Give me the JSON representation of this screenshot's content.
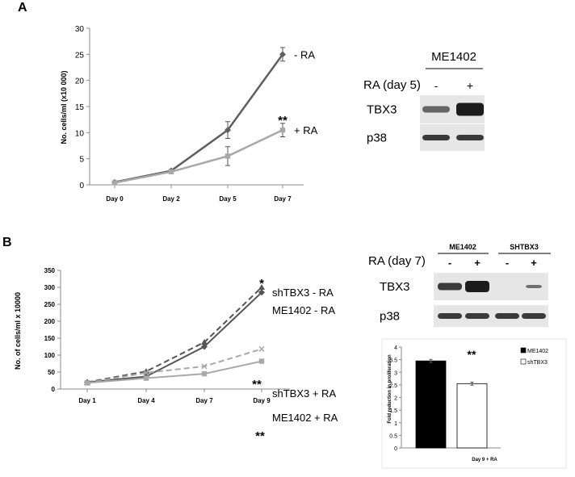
{
  "panels": {
    "a": {
      "label": "A",
      "chart": {
        "type": "line",
        "ylabel": "No. cells/ml (x10 000)",
        "xlabel": "",
        "categories": [
          "Day 0",
          "Day 2",
          "Day 5",
          "Day 7"
        ],
        "ylim": [
          0,
          30
        ],
        "yticks": [
          0,
          5,
          10,
          15,
          20,
          25,
          30
        ],
        "series": [
          {
            "name": "- RA",
            "values": [
              0.5,
              2.7,
              10.5,
              25
            ],
            "errors": [
              0.2,
              0.3,
              1.6,
              1.3
            ],
            "color": "#5f5f5f",
            "dashed": false,
            "marker": "diamond"
          },
          {
            "name": "+ RA",
            "values": [
              0.4,
              2.5,
              5.5,
              10.5
            ],
            "errors": [
              0.2,
              0.3,
              1.8,
              1.3
            ],
            "color": "#a8a8a8",
            "dashed": false,
            "marker": "square"
          }
        ],
        "annotation": "**"
      },
      "blot": {
        "cell_line": "ME1402",
        "condition_label": "RA (day 5)",
        "lanes": [
          "-",
          "+"
        ],
        "rows": [
          {
            "label": "TBX3",
            "intensity": [
              0.5,
              1.0
            ]
          },
          {
            "label": "p38",
            "intensity": [
              0.8,
              0.8
            ]
          }
        ]
      }
    },
    "b": {
      "label": "B",
      "chart": {
        "type": "line",
        "ylabel": "No. of cells/ml x 10000",
        "xlabel": "",
        "categories": [
          "Day 1",
          "Day 4",
          "Day 7",
          "Day 9"
        ],
        "ylim": [
          0,
          350
        ],
        "yticks": [
          0,
          50,
          100,
          150,
          200,
          250,
          300,
          350
        ],
        "series": [
          {
            "name": "shTBX3 - RA",
            "values": [
              20,
              52,
              138,
              300
            ],
            "color": "#555555",
            "dashed": true,
            "marker": "triangle",
            "annotation": "*"
          },
          {
            "name": "ME1402 - RA",
            "values": [
              20,
              37,
              125,
              285
            ],
            "color": "#555555",
            "dashed": false,
            "marker": "diamond",
            "annotation": ""
          },
          {
            "name": "shTBX3 + RA",
            "values": [
              18,
              48,
              67,
              118
            ],
            "color": "#a8a8a8",
            "dashed": true,
            "marker": "x",
            "annotation": "**"
          },
          {
            "name": "ME1402 + RA",
            "values": [
              18,
              32,
              45,
              82
            ],
            "color": "#a8a8a8",
            "dashed": false,
            "marker": "square",
            "annotation": "**"
          }
        ]
      },
      "blot": {
        "groups": [
          "ME1402",
          "SHTBX3"
        ],
        "condition_label": "RA (day 7)",
        "lanes": [
          "-",
          "+",
          "-",
          "+"
        ],
        "rows": [
          {
            "label": "TBX3",
            "intensity": [
              0.8,
              1.0,
              0,
              0.45
            ]
          },
          {
            "label": "p38",
            "intensity": [
              0.8,
              0.8,
              0.8,
              0.8
            ]
          }
        ]
      },
      "bar_chart": {
        "type": "bar",
        "ylabel": "Fold reduction in proliferation",
        "xlabel": "Day 9 + RA",
        "ylim": [
          0,
          4
        ],
        "yticks": [
          0,
          0.5,
          1,
          1.5,
          2,
          2.5,
          3,
          3.5,
          4
        ],
        "series": [
          {
            "name": "ME1402",
            "value": 3.45,
            "error": 0.06,
            "color": "#000000"
          },
          {
            "name": "shTBX3",
            "value": 2.55,
            "error": 0.06,
            "color": "#ffffff"
          }
        ],
        "annotation": "**",
        "legend_position": "top-right"
      }
    }
  }
}
